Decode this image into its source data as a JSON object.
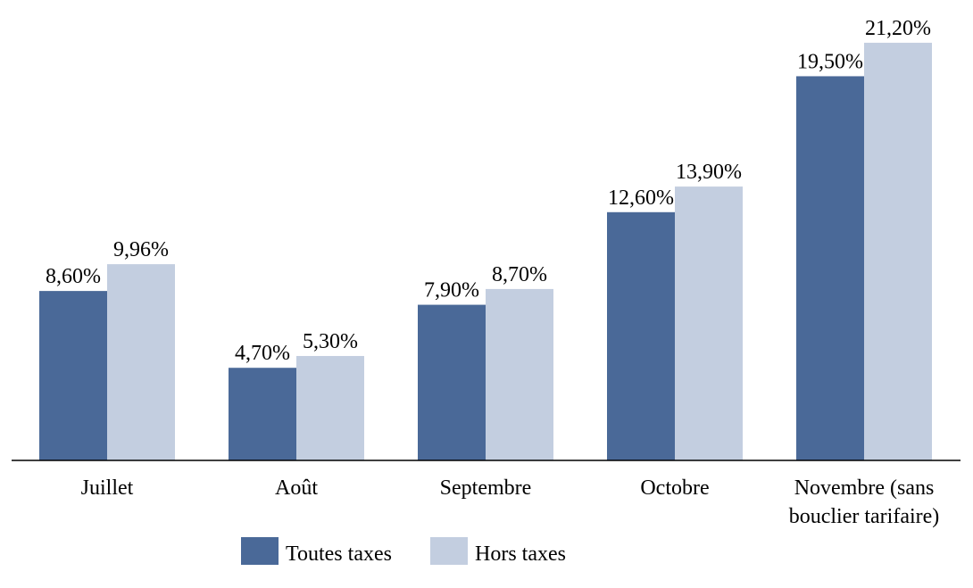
{
  "chart_data": {
    "type": "bar",
    "title": "",
    "xlabel": "",
    "ylabel": "",
    "categories": [
      "Juillet",
      "Août",
      "Septembre",
      "Octobre",
      "Novembre (sans bouclier tarifaire)"
    ],
    "category_lines": [
      [
        "Juillet"
      ],
      [
        "Août"
      ],
      [
        "Septembre"
      ],
      [
        "Octobre"
      ],
      [
        "Novembre (sans",
        "bouclier tarifaire)"
      ]
    ],
    "series": [
      {
        "name": "Toutes taxes",
        "color": "#4a6998",
        "values": [
          8.6,
          4.7,
          7.9,
          12.6,
          19.5
        ],
        "labels": [
          "8,60%",
          "4,70%",
          "7,90%",
          "12,60%",
          "19,50%"
        ]
      },
      {
        "name": "Hors taxes",
        "color": "#c3cee0",
        "values": [
          9.96,
          5.3,
          8.7,
          13.9,
          21.2
        ],
        "labels": [
          "9,96%",
          "5,30%",
          "8,70%",
          "13,90%",
          "21,20%"
        ]
      }
    ],
    "unit": "%",
    "grid": false,
    "legend": "bottom"
  }
}
